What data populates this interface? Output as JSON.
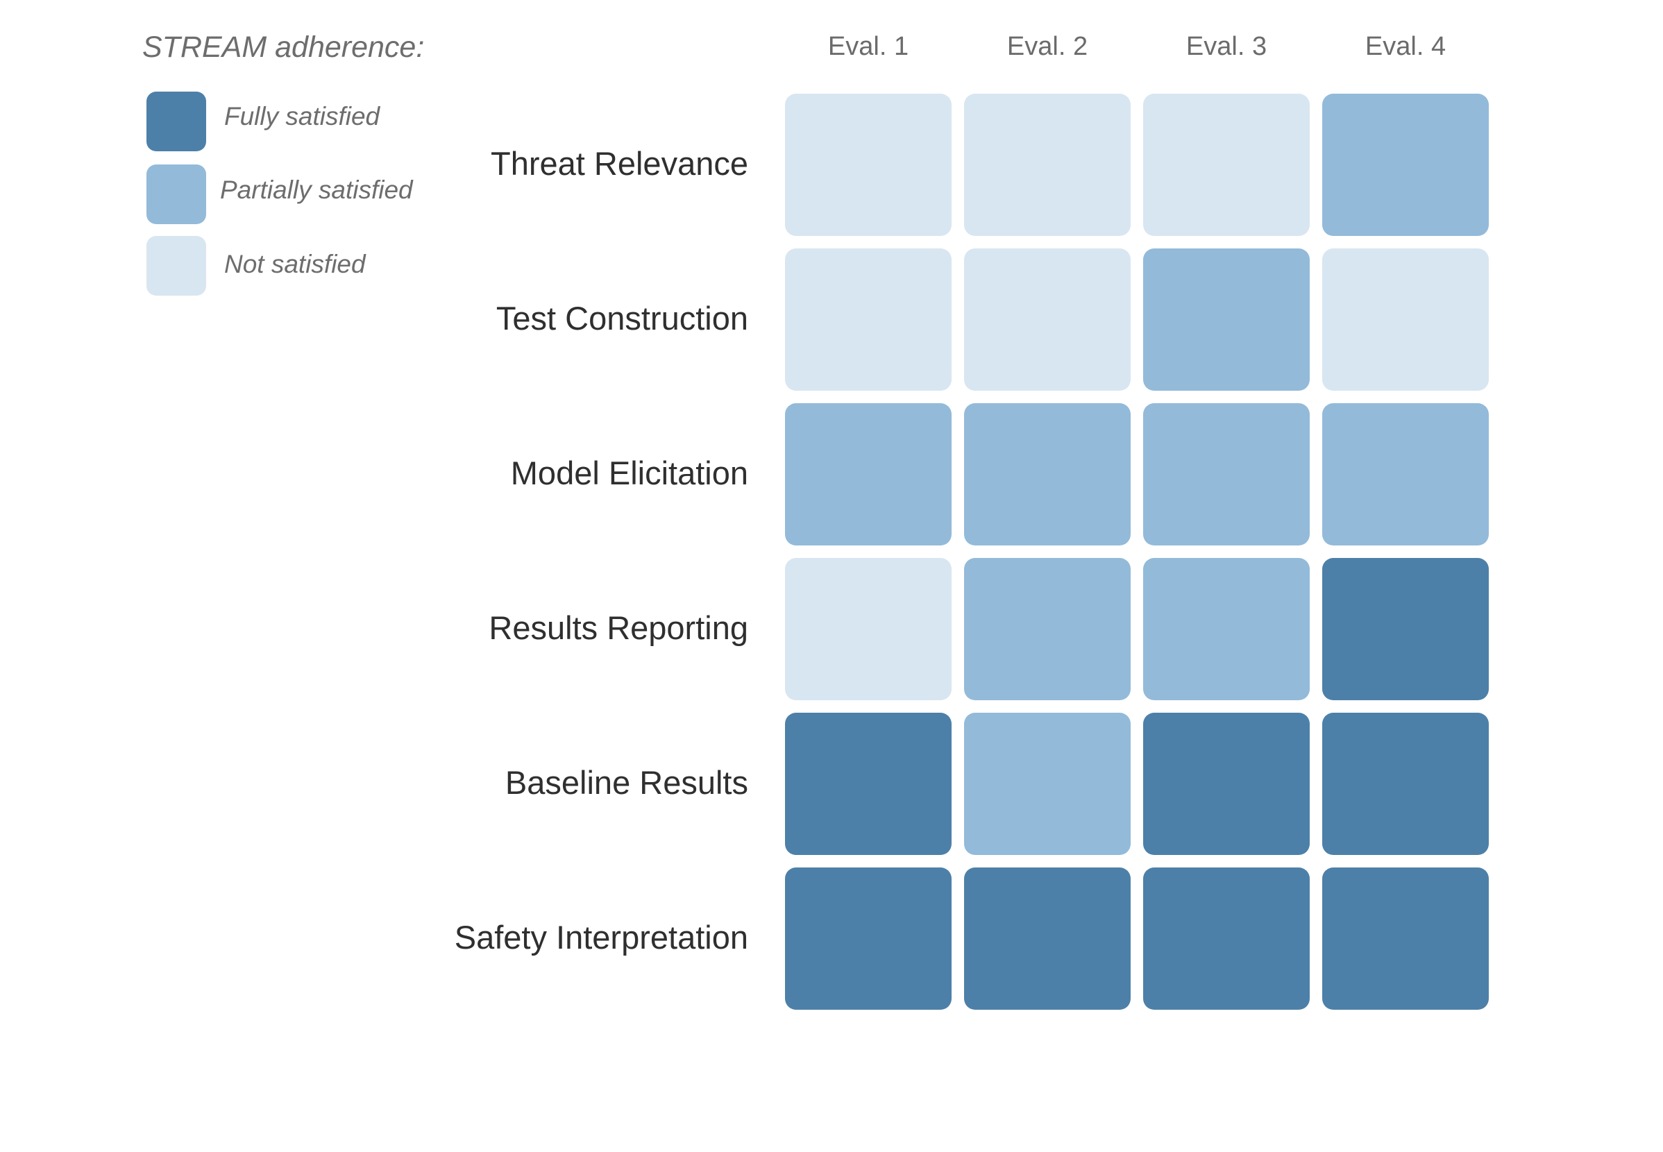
{
  "legend": {
    "title": "STREAM adherence:",
    "items": [
      {
        "label": "Fully satisfied",
        "level": "full",
        "color": "#4d80a8"
      },
      {
        "label": "Partially satisfied",
        "level": "partial",
        "color": "#93bad9"
      },
      {
        "label": "Not satisfied",
        "level": "none",
        "color": "#d8e6f1"
      }
    ]
  },
  "chart_data": {
    "type": "heatmap",
    "title": "",
    "columns": [
      "Eval. 1",
      "Eval. 2",
      "Eval. 3",
      "Eval. 4"
    ],
    "rows": [
      "Threat Relevance",
      "Test Construction",
      "Model Elicitation",
      "Results Reporting",
      "Baseline Results",
      "Safety Interpretation"
    ],
    "values": [
      [
        "none",
        "none",
        "none",
        "partial"
      ],
      [
        "none",
        "none",
        "partial",
        "none"
      ],
      [
        "partial",
        "partial",
        "partial",
        "partial"
      ],
      [
        "none",
        "partial",
        "partial",
        "full"
      ],
      [
        "full",
        "partial",
        "full",
        "full"
      ],
      [
        "full",
        "full",
        "full",
        "full"
      ]
    ],
    "legend_position": "top-left"
  }
}
